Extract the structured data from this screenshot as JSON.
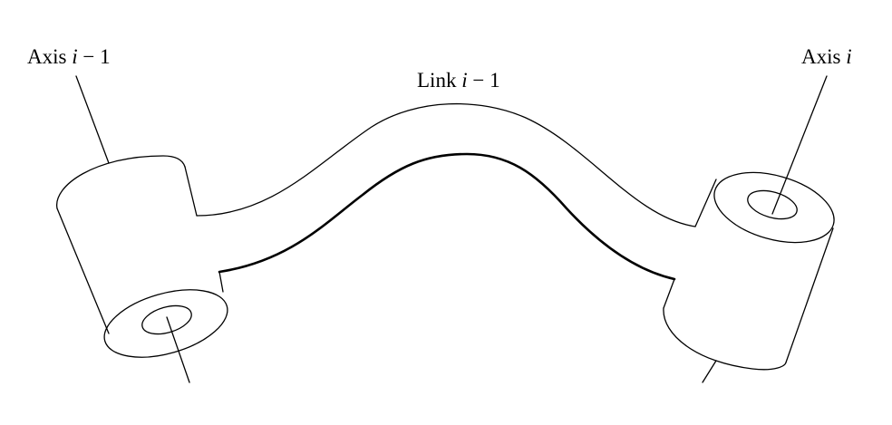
{
  "labels": {
    "axis_left": {
      "prefix": "Axis ",
      "var": "i",
      "suffix": " − 1"
    },
    "link": {
      "prefix": "Link ",
      "var": "i",
      "suffix": " − 1"
    },
    "axis_right": {
      "prefix": "Axis ",
      "var": "i",
      "suffix": ""
    }
  },
  "colors": {
    "stroke": "#000000",
    "background": "#ffffff"
  }
}
